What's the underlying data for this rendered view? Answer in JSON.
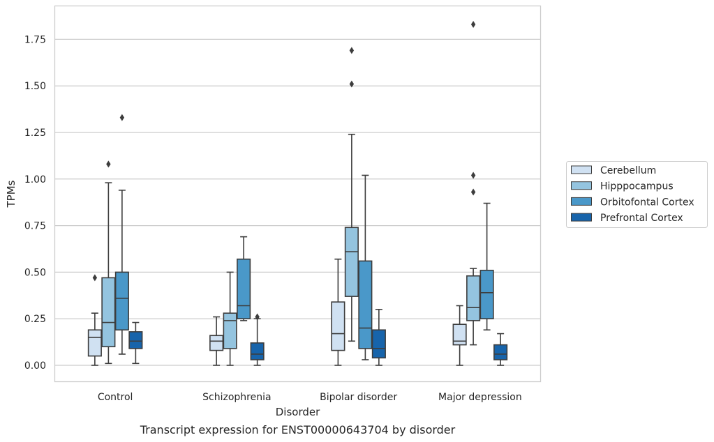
{
  "chart_data": {
    "type": "box",
    "title": "",
    "caption": "Transcript expression for ENST00000643704 by disorder",
    "xlabel": "Disorder",
    "ylabel": "TPMs",
    "ylim": [
      -0.09,
      1.92
    ],
    "yticks": [
      "0.00",
      "0.25",
      "0.50",
      "0.75",
      "1.00",
      "1.25",
      "1.50",
      "1.75"
    ],
    "grid": "horizontal",
    "legend_position": "right",
    "categories": [
      "Control",
      "Schizophrenia",
      "Bipolar disorder",
      "Major depression"
    ],
    "series": [
      {
        "name": "Cerebellum",
        "color": "#d0e1f2",
        "boxes": [
          {
            "whislo": 0.0,
            "q1": 0.05,
            "med": 0.15,
            "q3": 0.19,
            "whishi": 0.28,
            "fliers": [
              0.47
            ]
          },
          {
            "whislo": 0.0,
            "q1": 0.08,
            "med": 0.13,
            "q3": 0.16,
            "whishi": 0.26,
            "fliers": []
          },
          {
            "whislo": 0.0,
            "q1": 0.08,
            "med": 0.17,
            "q3": 0.34,
            "whishi": 0.57,
            "fliers": []
          },
          {
            "whislo": 0.0,
            "q1": 0.11,
            "med": 0.13,
            "q3": 0.22,
            "whishi": 0.32,
            "fliers": []
          }
        ]
      },
      {
        "name": "Hipppocampus",
        "color": "#94c4df",
        "boxes": [
          {
            "whislo": 0.01,
            "q1": 0.1,
            "med": 0.23,
            "q3": 0.47,
            "whishi": 0.98,
            "fliers": [
              1.08
            ]
          },
          {
            "whislo": 0.0,
            "q1": 0.09,
            "med": 0.24,
            "q3": 0.28,
            "whishi": 0.5,
            "fliers": []
          },
          {
            "whislo": 0.13,
            "q1": 0.37,
            "med": 0.61,
            "q3": 0.74,
            "whishi": 1.24,
            "fliers": [
              1.51,
              1.69
            ]
          },
          {
            "whislo": 0.11,
            "q1": 0.24,
            "med": 0.31,
            "q3": 0.48,
            "whishi": 0.52,
            "fliers": [
              0.93,
              1.02,
              1.83
            ]
          }
        ]
      },
      {
        "name": "Orbitofontal Cortex",
        "color": "#4a98c9",
        "boxes": [
          {
            "whislo": 0.06,
            "q1": 0.19,
            "med": 0.36,
            "q3": 0.5,
            "whishi": 0.94,
            "fliers": [
              1.33
            ]
          },
          {
            "whislo": 0.24,
            "q1": 0.25,
            "med": 0.32,
            "q3": 0.57,
            "whishi": 0.69,
            "fliers": []
          },
          {
            "whislo": 0.03,
            "q1": 0.09,
            "med": 0.2,
            "q3": 0.56,
            "whishi": 1.02,
            "fliers": []
          },
          {
            "whislo": 0.19,
            "q1": 0.25,
            "med": 0.39,
            "q3": 0.51,
            "whishi": 0.87,
            "fliers": []
          }
        ]
      },
      {
        "name": "Prefrontal Cortex",
        "color": "#1764ab",
        "boxes": [
          {
            "whislo": 0.01,
            "q1": 0.09,
            "med": 0.13,
            "q3": 0.18,
            "whishi": 0.23,
            "fliers": []
          },
          {
            "whislo": 0.0,
            "q1": 0.03,
            "med": 0.06,
            "q3": 0.12,
            "whishi": 0.25,
            "fliers": [
              0.26
            ]
          },
          {
            "whislo": 0.0,
            "q1": 0.04,
            "med": 0.09,
            "q3": 0.19,
            "whishi": 0.3,
            "fliers": []
          },
          {
            "whislo": 0.0,
            "q1": 0.03,
            "med": 0.06,
            "q3": 0.11,
            "whishi": 0.17,
            "fliers": []
          }
        ]
      }
    ]
  }
}
